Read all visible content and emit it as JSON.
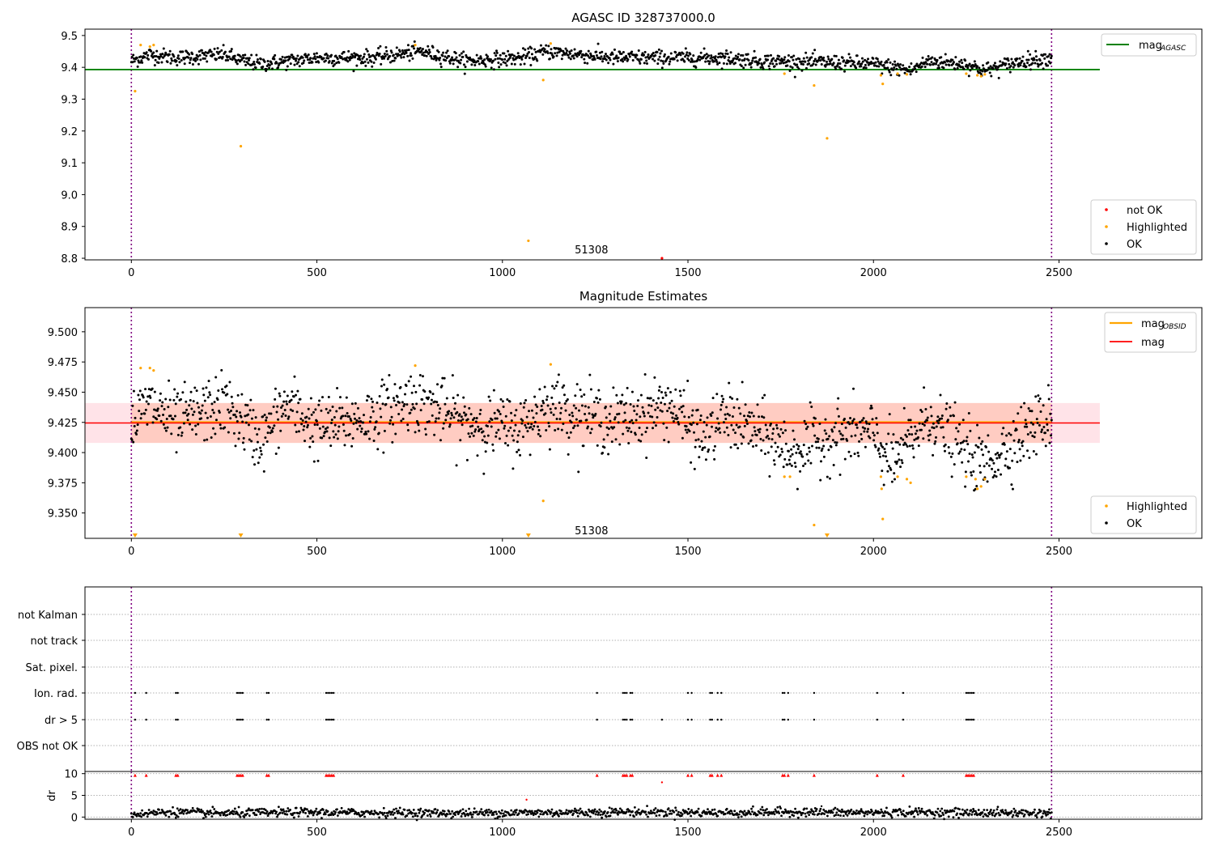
{
  "chart_data": [
    {
      "type": "scatter",
      "title": "AGASC ID 328737000.0",
      "xlabel": "",
      "ylabel": "",
      "xlim": [
        -125,
        2885
      ],
      "ylim": [
        8.795,
        9.52
      ],
      "xticks": [
        0,
        500,
        1000,
        1500,
        2000,
        2500
      ],
      "yticks": [
        8.8,
        8.9,
        9.0,
        9.1,
        9.2,
        9.3,
        9.4,
        9.5
      ],
      "tick_decimals": 1,
      "obsid_label": "51308",
      "obsid_label_x": 1240,
      "obsid_label_y": 8.825,
      "vlines": [
        0,
        2480
      ],
      "colors": {
        "ok": "#000000",
        "highlighted": "#ffa500",
        "not_ok": "#ff0000",
        "mag_agasc": "#008000",
        "vline": "#800080"
      },
      "mag_agasc": {
        "value": 9.393,
        "x_range": [
          -125,
          2610
        ]
      },
      "ok_trend": {
        "x": [
          0,
          50,
          120,
          250,
          300,
          350,
          500,
          650,
          780,
          900,
          1050,
          1120,
          1300,
          1450,
          1600,
          1700,
          1900,
          2000,
          2100,
          2150,
          2250,
          2300,
          2400,
          2480
        ],
        "y": [
          9.42,
          9.44,
          9.43,
          9.44,
          9.42,
          9.41,
          9.43,
          9.43,
          9.45,
          9.42,
          9.43,
          9.45,
          9.43,
          9.43,
          9.43,
          9.42,
          9.415,
          9.41,
          9.39,
          9.42,
          9.41,
          9.39,
          9.42,
          9.43
        ],
        "n": 1450,
        "scatter": 0.012
      },
      "highlighted": {
        "x": [
          10,
          25,
          50,
          60,
          295,
          765,
          1110,
          1130,
          1070,
          1840,
          1875,
          2020,
          2025,
          2065,
          2090,
          1760,
          2280,
          2290,
          2300,
          2250
        ],
        "y": [
          9.325,
          9.47,
          9.465,
          9.47,
          9.152,
          9.47,
          9.36,
          9.475,
          8.855,
          9.343,
          9.177,
          9.375,
          9.348,
          9.38,
          9.378,
          9.38,
          9.375,
          9.372,
          9.378,
          9.38
        ]
      },
      "not_ok": {
        "x": [
          1430
        ],
        "y": [
          8.8
        ]
      },
      "legend_upper": [
        {
          "label": "mag",
          "sub": "AGASC",
          "kind": "line",
          "color": "#008000"
        }
      ],
      "legend_lower": [
        {
          "label": "not OK",
          "kind": "dot",
          "color": "#ff0000"
        },
        {
          "label": "Highlighted",
          "kind": "dot",
          "color": "#ffa500"
        },
        {
          "label": "OK",
          "kind": "dot",
          "color": "#000000"
        }
      ]
    },
    {
      "type": "scatter",
      "title": "Magnitude Estimates",
      "xlabel": "",
      "ylabel": "",
      "xlim": [
        -125,
        2885
      ],
      "ylim": [
        9.329,
        9.52
      ],
      "xticks": [
        0,
        500,
        1000,
        1500,
        2000,
        2500
      ],
      "yticks": [
        9.35,
        9.375,
        9.4,
        9.425,
        9.45,
        9.475,
        9.5
      ],
      "tick_decimals": 3,
      "obsid_label": "51308",
      "obsid_label_x": 1240,
      "obsid_label_y": 9.335,
      "vlines": [
        0,
        2480
      ],
      "colors": {
        "ok": "#000000",
        "highlighted": "#ffa500",
        "mag": "#ff0000",
        "mag_obsid": "#ffa500",
        "band_mag": "#ffc0cb",
        "band_obsid": "#ffa07a",
        "vline": "#800080"
      },
      "mag": {
        "value": 9.4245,
        "band": [
          9.408,
          9.441
        ],
        "x_range": [
          -125,
          2610
        ]
      },
      "mag_obsid": {
        "value": 9.4245,
        "band": [
          9.408,
          9.441
        ],
        "x_range": [
          0,
          2480
        ]
      },
      "ok_trend": {
        "x": [
          0,
          50,
          120,
          250,
          300,
          350,
          420,
          500,
          650,
          760,
          900,
          1050,
          1120,
          1300,
          1450,
          1540,
          1600,
          1700,
          1780,
          1900,
          2000,
          2050,
          2100,
          2150,
          2250,
          2300,
          2400,
          2480
        ],
        "y": [
          9.425,
          9.44,
          9.425,
          9.44,
          9.425,
          9.41,
          9.44,
          9.42,
          9.43,
          9.445,
          9.425,
          9.42,
          9.44,
          9.425,
          9.44,
          9.41,
          9.43,
          9.415,
          9.4,
          9.415,
          9.415,
          9.39,
          9.41,
          9.43,
          9.4,
          9.39,
          9.415,
          9.43
        ],
        "n": 1450,
        "scatter": 0.013
      },
      "highlighted": {
        "x": [
          25,
          50,
          60,
          765,
          1110,
          1130,
          1760,
          1775,
          1840,
          2020,
          2022,
          2025,
          2065,
          2090,
          2100,
          2250,
          2275,
          2280,
          2290,
          2300
        ],
        "y": [
          9.47,
          9.47,
          9.468,
          9.472,
          9.36,
          9.473,
          9.38,
          9.38,
          9.34,
          9.38,
          9.37,
          9.345,
          9.38,
          9.378,
          9.375,
          9.38,
          9.378,
          9.37,
          9.372,
          9.378
        ]
      },
      "below_markers_x": [
        10,
        295,
        1070,
        1875
      ],
      "legend_upper": [
        {
          "label": "mag",
          "sub": "OBSID",
          "kind": "line",
          "color": "#ffa500"
        },
        {
          "label": "mag",
          "kind": "line",
          "color": "#ff0000"
        }
      ],
      "legend_lower": [
        {
          "label": "Highlighted",
          "kind": "dot",
          "color": "#ffa500"
        },
        {
          "label": "OK",
          "kind": "dot",
          "color": "#000000"
        }
      ]
    },
    {
      "type": "scatter",
      "title": "",
      "xlabel": "",
      "ylabel": "",
      "xlim": [
        -125,
        2885
      ],
      "categories": [
        "not Kalman",
        "not track",
        "Sat. pixel.",
        "Ion. rad.",
        "dr > 5",
        "OBS not OK"
      ],
      "flag_x": [
        10,
        40,
        120,
        125,
        285,
        290,
        295,
        300,
        365,
        370,
        525,
        530,
        535,
        540,
        545,
        1255,
        1325,
        1330,
        1335,
        1345,
        1350,
        1500,
        1510,
        1560,
        1565,
        1580,
        1590,
        1755,
        1760,
        1770,
        1840,
        2010,
        2080,
        2250,
        2255,
        2260,
        2265,
        2270
      ],
      "flag_rows": [
        "Ion. rad.",
        "dr > 5"
      ],
      "flag_x_drgt5_only": [
        1430
      ],
      "grid": true,
      "vlines": [
        0,
        2480
      ]
    },
    {
      "type": "scatter",
      "title": "",
      "xlabel": "",
      "ylabel": "dr",
      "xlim": [
        -125,
        2885
      ],
      "ylim": [
        -0.5,
        10.5
      ],
      "xticks": [
        0,
        500,
        1000,
        1500,
        2000,
        2500
      ],
      "yticks": [
        0,
        5,
        10
      ],
      "ok_trend": {
        "x": [
          0,
          100,
          200,
          300,
          450,
          600,
          750,
          900,
          1050,
          1250,
          1300,
          1450,
          1600,
          1800,
          1900,
          2100,
          2300,
          2480
        ],
        "y": [
          0.6,
          1.2,
          0.9,
          0.9,
          1.1,
          1.0,
          1.0,
          0.9,
          1.0,
          1.1,
          1.2,
          1.1,
          1.0,
          1.2,
          1.0,
          1.1,
          1.0,
          0.9
        ],
        "n": 1200,
        "scatter": 0.5
      },
      "outliers": {
        "x": [
          1065,
          1430,
          1860
        ],
        "y": [
          4.0,
          8.0,
          2.5
        ]
      },
      "clipped_x": [
        10,
        40,
        120,
        125,
        285,
        290,
        295,
        300,
        365,
        370,
        525,
        530,
        535,
        540,
        545,
        1255,
        1325,
        1330,
        1335,
        1345,
        1350,
        1500,
        1510,
        1560,
        1565,
        1580,
        1590,
        1755,
        1760,
        1770,
        1840,
        2010,
        2080,
        2250,
        2255,
        2260,
        2265,
        2270
      ],
      "vlines": [
        0,
        2480
      ]
    }
  ]
}
